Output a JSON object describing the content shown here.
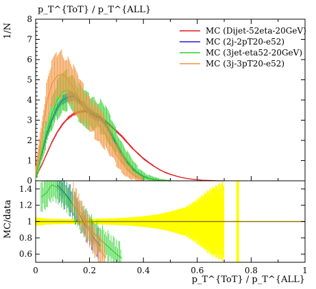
{
  "chart_data": [
    {
      "panel": "main",
      "type": "line",
      "xlim": [
        0,
        1
      ],
      "ylim": [
        0,
        8
      ],
      "ylabel": "1/N",
      "xlabel_top": "p_T^{ToT} / p_T^{ALL}",
      "yticks": [
        "0",
        "1",
        "2",
        "3",
        "4",
        "5",
        "6",
        "7",
        "8"
      ],
      "legend_position": "top-right",
      "series": [
        {
          "name": "MC (Dijet-52eta-20GeV)",
          "color": "#e0161b",
          "x": [
            0.0,
            0.02,
            0.04,
            0.06,
            0.08,
            0.1,
            0.12,
            0.14,
            0.16,
            0.18,
            0.2,
            0.22,
            0.24,
            0.26,
            0.28,
            0.3,
            0.32,
            0.34,
            0.36,
            0.38,
            0.4,
            0.42,
            0.44,
            0.46,
            0.48,
            0.5,
            0.52,
            0.54,
            0.56,
            0.58,
            0.6,
            0.62,
            0.64,
            0.66,
            0.68,
            0.7
          ],
          "y": [
            0.2,
            0.7,
            1.3,
            1.9,
            2.4,
            2.8,
            3.1,
            3.3,
            3.4,
            3.45,
            3.4,
            3.3,
            3.15,
            2.95,
            2.7,
            2.45,
            2.2,
            1.9,
            1.6,
            1.35,
            1.1,
            0.9,
            0.72,
            0.55,
            0.42,
            0.32,
            0.24,
            0.17,
            0.12,
            0.08,
            0.05,
            0.03,
            0.02,
            0.01,
            0.0,
            0.0
          ]
        },
        {
          "name": "MC (2j-2pT20-e52)",
          "color": "#1a1adf",
          "x": [
            0.0,
            0.02,
            0.04,
            0.06,
            0.08,
            0.1,
            0.12,
            0.14,
            0.16,
            0.18,
            0.2,
            0.22,
            0.24,
            0.26,
            0.28,
            0.3,
            0.32,
            0.34,
            0.36,
            0.38,
            0.4,
            0.42,
            0.44,
            0.46,
            0.48,
            0.5
          ],
          "y": [
            0.3,
            1.2,
            2.2,
            3.0,
            3.6,
            4.0,
            4.15,
            4.2,
            4.0,
            3.7,
            3.4,
            3.2,
            3.1,
            2.8,
            2.3,
            1.8,
            1.3,
            0.9,
            0.6,
            0.38,
            0.22,
            0.12,
            0.06,
            0.03,
            0.01,
            0.0
          ]
        },
        {
          "name": "MC (3jet-eta52-20GeV)",
          "color": "#2fd12f",
          "x": [
            0.0,
            0.02,
            0.04,
            0.06,
            0.08,
            0.1,
            0.12,
            0.14,
            0.16,
            0.18,
            0.2,
            0.22,
            0.24,
            0.26,
            0.28,
            0.3,
            0.32,
            0.34,
            0.36,
            0.38,
            0.4,
            0.42,
            0.44,
            0.46,
            0.48,
            0.5
          ],
          "y": [
            0.3,
            1.3,
            2.4,
            3.3,
            4.0,
            4.4,
            4.5,
            4.3,
            3.9,
            3.6,
            3.4,
            3.3,
            3.2,
            2.9,
            2.4,
            1.9,
            1.4,
            1.0,
            0.65,
            0.4,
            0.24,
            0.13,
            0.07,
            0.03,
            0.01,
            0.0
          ]
        },
        {
          "name": "MC (3j-3pT20-e52)",
          "color": "#f1923b",
          "x": [
            0.0,
            0.02,
            0.04,
            0.06,
            0.08,
            0.1,
            0.12,
            0.14,
            0.16,
            0.18,
            0.2,
            0.22,
            0.24,
            0.26,
            0.28,
            0.3,
            0.32,
            0.34,
            0.36,
            0.38,
            0.4
          ],
          "y": [
            0.5,
            2.0,
            3.8,
            4.8,
            5.2,
            5.3,
            5.0,
            4.6,
            4.1,
            3.7,
            3.3,
            3.0,
            2.7,
            2.3,
            1.8,
            1.3,
            0.9,
            0.55,
            0.3,
            0.15,
            0.05
          ]
        }
      ]
    },
    {
      "panel": "ratio",
      "type": "line",
      "xlim": [
        0,
        1
      ],
      "ylim": [
        0.5,
        1.5
      ],
      "ylabel": "MC/data",
      "xlabel": "p_T^{ToT} / p_T^{ALL}",
      "yticks": [
        "0.6",
        "0.8",
        "1",
        "1.2",
        "1.4"
      ],
      "xticks": [
        "0",
        "0.2",
        "0.4",
        "0.6",
        "0.8",
        "1"
      ],
      "reference_line": 1,
      "band_color": "#ffff00",
      "band": {
        "x": [
          0.0,
          0.05,
          0.1,
          0.15,
          0.2,
          0.25,
          0.3,
          0.35,
          0.4,
          0.45,
          0.5,
          0.55,
          0.6,
          0.65,
          0.7
        ],
        "half_width": [
          0.05,
          0.035,
          0.03,
          0.03,
          0.032,
          0.036,
          0.042,
          0.05,
          0.065,
          0.085,
          0.12,
          0.17,
          0.28,
          0.42,
          0.5
        ]
      },
      "series": [
        {
          "name": "MC (2j-2pT20-e52)",
          "color": "#1a1adf",
          "x": [
            0.08,
            0.1,
            0.12,
            0.14,
            0.16,
            0.18,
            0.2,
            0.22,
            0.24
          ],
          "y": [
            1.45,
            1.38,
            1.3,
            1.2,
            1.1,
            0.98,
            0.88,
            0.78,
            0.7
          ]
        },
        {
          "name": "MC (3jet-eta52-20GeV)",
          "color": "#2fd12f",
          "x": [
            0.02,
            0.04,
            0.06,
            0.08,
            0.1,
            0.12,
            0.14,
            0.16,
            0.18,
            0.2,
            0.22,
            0.24,
            0.26,
            0.28,
            0.3,
            0.32
          ],
          "y": [
            1.3,
            1.35,
            1.45,
            1.42,
            1.36,
            1.28,
            1.2,
            1.1,
            1.0,
            0.92,
            0.84,
            0.78,
            0.72,
            0.66,
            0.6,
            0.55
          ]
        },
        {
          "name": "MC (3j-3pT20-e52)",
          "color": "#f1923b",
          "x": [
            0.14,
            0.16,
            0.18,
            0.2,
            0.22,
            0.24,
            0.26
          ],
          "y": [
            1.3,
            1.15,
            1.0,
            0.88,
            0.75,
            0.65,
            0.55
          ]
        }
      ]
    }
  ]
}
